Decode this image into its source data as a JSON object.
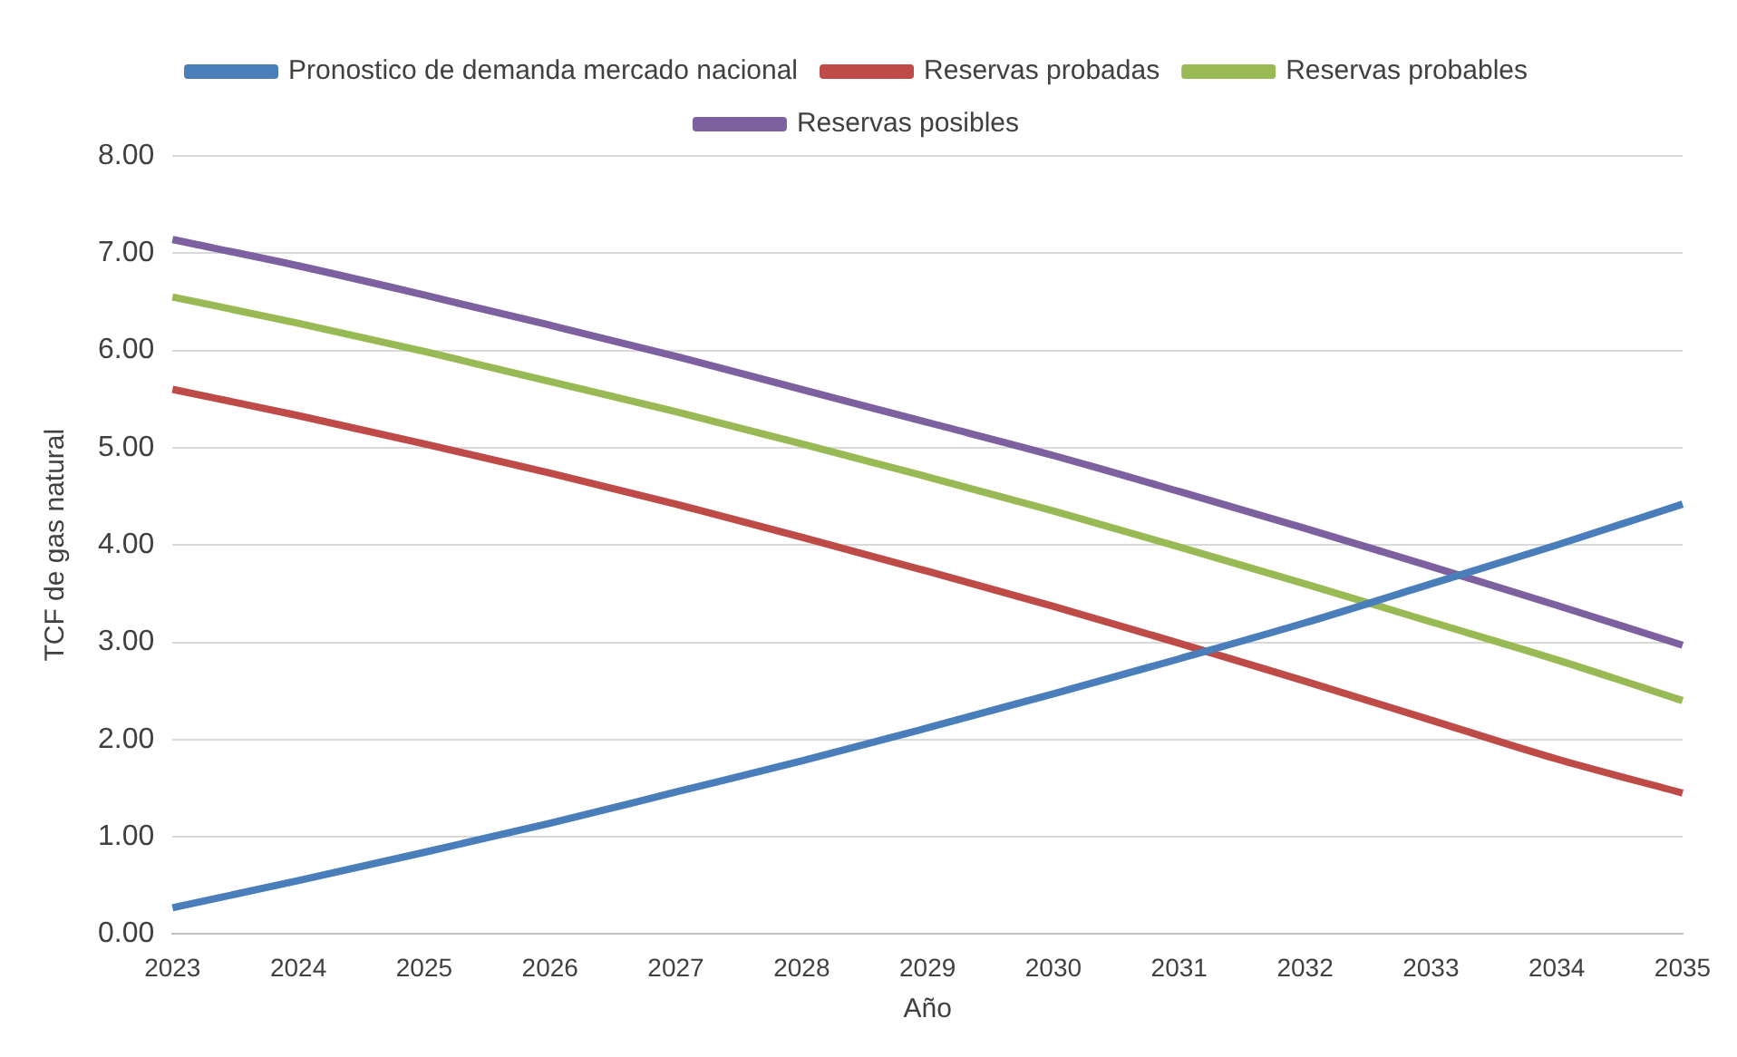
{
  "chart_data": {
    "type": "line",
    "xlabel": "Año",
    "ylabel": "TCF de gas natural",
    "categories": [
      "2023",
      "2024",
      "2025",
      "2026",
      "2027",
      "2028",
      "2029",
      "2030",
      "2031",
      "2032",
      "2033",
      "2034",
      "2035"
    ],
    "series": [
      {
        "name": "Pronostico de demanda mercado nacional",
        "color": "#4a7ebb",
        "values": [
          0.27,
          0.55,
          0.84,
          1.14,
          1.46,
          1.78,
          2.12,
          2.47,
          2.83,
          3.2,
          3.6,
          4.0,
          4.42
        ]
      },
      {
        "name": "Reservas probadas",
        "color": "#be4b48",
        "values": [
          5.6,
          5.33,
          5.04,
          4.74,
          4.42,
          4.08,
          3.73,
          3.37,
          2.99,
          2.6,
          2.2,
          1.8,
          1.45
        ]
      },
      {
        "name": "Reservas probables",
        "color": "#98b954",
        "values": [
          6.55,
          6.28,
          5.99,
          5.68,
          5.37,
          5.04,
          4.7,
          4.35,
          3.98,
          3.6,
          3.21,
          2.82,
          2.4
        ]
      },
      {
        "name": "Reservas posibles",
        "color": "#7d60a0",
        "values": [
          7.14,
          6.87,
          6.57,
          6.26,
          5.94,
          5.6,
          5.26,
          4.92,
          4.55,
          4.17,
          3.78,
          3.38,
          2.97
        ]
      }
    ],
    "ylim": [
      0,
      8
    ],
    "yticks": [
      {
        "value": 0,
        "label": "0.00"
      },
      {
        "value": 1,
        "label": "1.00"
      },
      {
        "value": 2,
        "label": "2.00"
      },
      {
        "value": 3,
        "label": "3.00"
      },
      {
        "value": 4,
        "label": "4.00"
      },
      {
        "value": 5,
        "label": "5.00"
      },
      {
        "value": 6,
        "label": "6.00"
      },
      {
        "value": 7,
        "label": "7.00"
      },
      {
        "value": 8,
        "label": "8.00"
      }
    ],
    "grid": "y",
    "legend": "top",
    "marker": "none",
    "line_style": "solid"
  }
}
